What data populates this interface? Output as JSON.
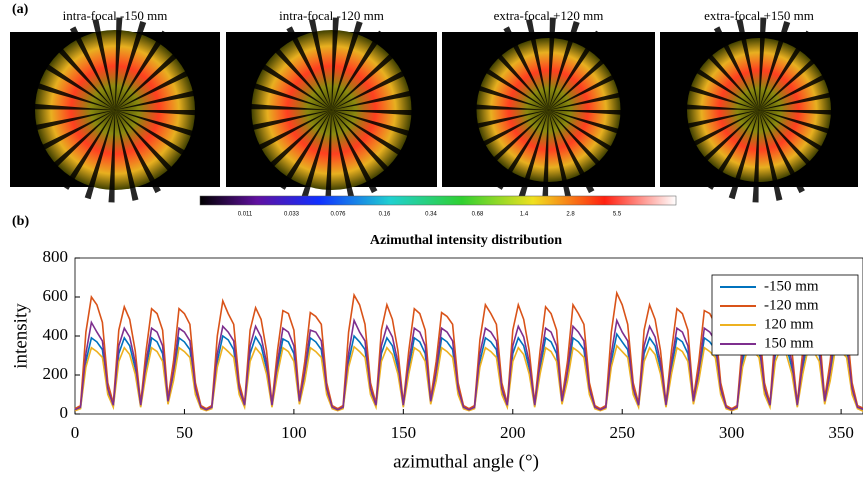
{
  "panel_a": {
    "label": "(a)",
    "image_titles": [
      "intra-focal -150 mm",
      "intra-focal -120 mm",
      "extra-focal +120 mm",
      "extra-focal +150 mm"
    ],
    "colorbar_ticks": [
      0.011,
      0.033,
      0.076,
      0.16,
      0.34,
      0.68,
      1.4,
      2.8,
      5.5
    ]
  },
  "chart_data": {
    "type": "line",
    "panel_label": "(b)",
    "title": "Azimuthal intensity distribution",
    "x_label": "azimuthal angle (°)",
    "y_label": "intensity",
    "xlim": [
      0,
      360
    ],
    "ylim": [
      0,
      800
    ],
    "xticks": [
      0,
      50,
      100,
      150,
      200,
      250,
      300,
      350
    ],
    "yticks": [
      0,
      200,
      400,
      600,
      800
    ],
    "legend": "upper right",
    "x": [
      0,
      2.5,
      5,
      7.5,
      10,
      12.5,
      15,
      17.5,
      20,
      22.5,
      25,
      27.5,
      30,
      32.5,
      35,
      37.5,
      40,
      42.5,
      45,
      47.5,
      50,
      52.5,
      55,
      57.5,
      60,
      62.5,
      65,
      67.5,
      70,
      72.5,
      75,
      77.5,
      80,
      82.5,
      85,
      87.5,
      90,
      92.5,
      95,
      97.5,
      100,
      102.5,
      105,
      107.5,
      110,
      112.5,
      115,
      117.5,
      120,
      122.5,
      125,
      127.5,
      130,
      132.5,
      135,
      137.5,
      140,
      142.5,
      145,
      147.5,
      150,
      152.5,
      155,
      157.5,
      160,
      162.5,
      165,
      167.5,
      170,
      172.5,
      175,
      177.5,
      180,
      182.5,
      185,
      187.5,
      190,
      192.5,
      195,
      197.5,
      200,
      202.5,
      205,
      207.5,
      210,
      212.5,
      215,
      217.5,
      220,
      222.5,
      225,
      227.5,
      230,
      232.5,
      235,
      237.5,
      240,
      242.5,
      245,
      247.5,
      250,
      252.5,
      255,
      257.5,
      260,
      262.5,
      265,
      267.5,
      270,
      272.5,
      275,
      277.5,
      280,
      282.5,
      285,
      287.5,
      290,
      292.5,
      295,
      297.5,
      300,
      302.5,
      305,
      307.5,
      310,
      312.5,
      315,
      317.5,
      320,
      322.5,
      325,
      327.5,
      330,
      332.5,
      335,
      337.5,
      340,
      342.5,
      345,
      347.5,
      350,
      352.5,
      355,
      357.5,
      360
    ],
    "series": [
      {
        "name": "-150 mm",
        "color": "#0072bd",
        "values": [
          20,
          30,
          270,
          390,
          370,
          330,
          120,
          40,
          310,
          390,
          350,
          235,
          40,
          235,
          390,
          370,
          310,
          60,
          195,
          390,
          370,
          330,
          120,
          30,
          20,
          30,
          270,
          400,
          380,
          330,
          120,
          40,
          310,
          395,
          350,
          235,
          40,
          235,
          385,
          370,
          310,
          60,
          195,
          390,
          370,
          330,
          120,
          30,
          20,
          30,
          270,
          400,
          370,
          330,
          120,
          40,
          310,
          390,
          350,
          235,
          40,
          235,
          390,
          370,
          310,
          60,
          195,
          390,
          370,
          330,
          120,
          30,
          20,
          30,
          270,
          390,
          370,
          330,
          120,
          40,
          310,
          390,
          350,
          235,
          40,
          235,
          390,
          370,
          310,
          60,
          195,
          390,
          370,
          330,
          120,
          30,
          20,
          30,
          270,
          410,
          370,
          330,
          120,
          40,
          310,
          390,
          350,
          235,
          40,
          235,
          390,
          370,
          310,
          60,
          195,
          390,
          370,
          330,
          120,
          30,
          20,
          30,
          270,
          390,
          370,
          330,
          120,
          40,
          310,
          390,
          350,
          235,
          40,
          235,
          390,
          370,
          310,
          60,
          195,
          390,
          370,
          330,
          120,
          30,
          20
        ]
      },
      {
        "name": "-120 mm",
        "color": "#d95319",
        "values": [
          27,
          43,
          420,
          600,
          560,
          470,
          160,
          55,
          430,
          550,
          485,
          325,
          55,
          325,
          540,
          515,
          430,
          80,
          270,
          540,
          515,
          460,
          160,
          43,
          27,
          43,
          400,
          580,
          515,
          460,
          160,
          55,
          430,
          545,
          485,
          325,
          55,
          325,
          530,
          515,
          430,
          80,
          270,
          520,
          500,
          460,
          160,
          43,
          27,
          43,
          420,
          610,
          560,
          460,
          160,
          55,
          430,
          560,
          485,
          325,
          55,
          325,
          540,
          515,
          430,
          80,
          270,
          520,
          500,
          460,
          160,
          43,
          27,
          43,
          380,
          560,
          515,
          460,
          160,
          55,
          430,
          560,
          485,
          325,
          55,
          325,
          550,
          515,
          430,
          80,
          270,
          560,
          515,
          460,
          160,
          43,
          27,
          43,
          420,
          620,
          560,
          460,
          160,
          55,
          430,
          560,
          485,
          325,
          55,
          325,
          540,
          515,
          430,
          80,
          270,
          530,
          515,
          460,
          160,
          43,
          27,
          43,
          380,
          570,
          515,
          460,
          160,
          55,
          430,
          560,
          485,
          325,
          55,
          325,
          540,
          515,
          430,
          80,
          270,
          560,
          515,
          460,
          160,
          43,
          30
        ]
      },
      {
        "name": "120 mm",
        "color": "#edb120",
        "values": [
          17,
          27,
          240,
          340,
          320,
          290,
          100,
          35,
          270,
          340,
          305,
          205,
          35,
          205,
          340,
          320,
          270,
          50,
          170,
          340,
          320,
          290,
          100,
          27,
          17,
          27,
          240,
          345,
          320,
          290,
          100,
          35,
          270,
          340,
          305,
          205,
          35,
          205,
          340,
          320,
          270,
          50,
          170,
          340,
          320,
          290,
          100,
          27,
          17,
          27,
          240,
          345,
          320,
          290,
          100,
          35,
          270,
          340,
          305,
          205,
          35,
          205,
          340,
          320,
          270,
          50,
          170,
          340,
          320,
          290,
          100,
          27,
          17,
          27,
          240,
          340,
          320,
          290,
          100,
          35,
          270,
          340,
          305,
          205,
          35,
          205,
          340,
          320,
          270,
          50,
          170,
          340,
          320,
          290,
          100,
          27,
          17,
          27,
          240,
          350,
          320,
          290,
          100,
          35,
          270,
          340,
          305,
          205,
          35,
          205,
          340,
          320,
          270,
          50,
          170,
          340,
          320,
          290,
          100,
          27,
          17,
          27,
          240,
          340,
          320,
          290,
          100,
          35,
          270,
          340,
          305,
          205,
          35,
          205,
          340,
          320,
          270,
          50,
          170,
          340,
          320,
          290,
          100,
          27,
          15
        ]
      },
      {
        "name": "150 mm",
        "color": "#7e2f8e",
        "values": [
          22,
          35,
          310,
          470,
          420,
          375,
          130,
          45,
          350,
          440,
          395,
          265,
          45,
          265,
          440,
          420,
          350,
          65,
          220,
          440,
          420,
          375,
          130,
          35,
          22,
          35,
          310,
          450,
          420,
          375,
          130,
          45,
          350,
          450,
          395,
          265,
          45,
          265,
          440,
          420,
          350,
          65,
          220,
          430,
          420,
          375,
          130,
          35,
          22,
          35,
          310,
          480,
          420,
          375,
          130,
          45,
          350,
          450,
          395,
          265,
          45,
          265,
          440,
          420,
          350,
          65,
          220,
          440,
          420,
          375,
          130,
          35,
          22,
          35,
          310,
          440,
          420,
          375,
          130,
          45,
          350,
          450,
          395,
          265,
          45,
          265,
          440,
          420,
          350,
          65,
          220,
          450,
          420,
          375,
          130,
          35,
          22,
          35,
          310,
          480,
          420,
          375,
          130,
          45,
          350,
          450,
          395,
          265,
          45,
          265,
          440,
          420,
          350,
          65,
          220,
          440,
          420,
          375,
          130,
          35,
          22,
          35,
          310,
          450,
          420,
          375,
          130,
          45,
          350,
          450,
          395,
          265,
          45,
          265,
          440,
          420,
          350,
          65,
          220,
          450,
          420,
          375,
          130,
          35,
          25
        ]
      }
    ]
  }
}
